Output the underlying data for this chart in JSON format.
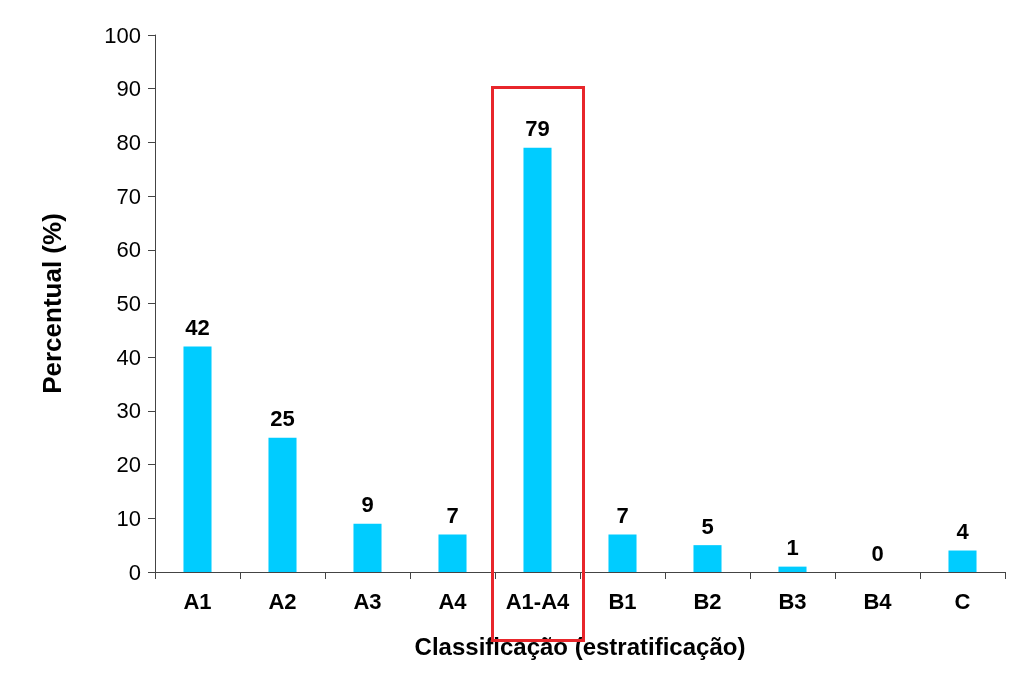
{
  "chart_data": {
    "type": "bar",
    "xlabel": "Classificação (estratificação)",
    "ylabel": "Percentual (%)",
    "categories": [
      "A1",
      "A2",
      "A3",
      "A4",
      "A1-A4",
      "B1",
      "B2",
      "B3",
      "B4",
      "C"
    ],
    "values": [
      42,
      25,
      9,
      7,
      79,
      7,
      5,
      1,
      0,
      4
    ],
    "color": "#00ccff",
    "data_labels": true,
    "ylim": [
      0,
      100
    ],
    "yticks": [
      0,
      10,
      20,
      30,
      40,
      50,
      60,
      70,
      80,
      90,
      100
    ],
    "grid": false
  }
}
